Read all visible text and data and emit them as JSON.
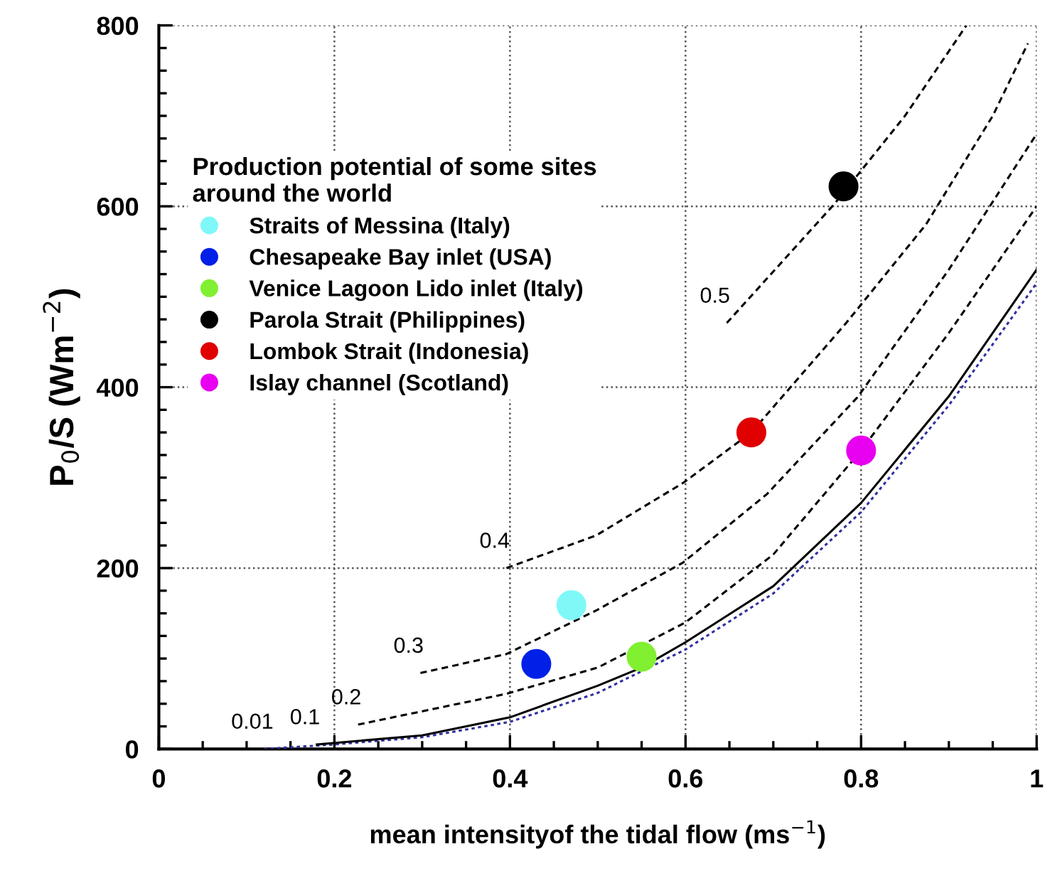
{
  "chart_data": {
    "type": "line",
    "xlabel": "mean intensityof the tidal flow (ms$^{−1}$)",
    "ylabel": "P$_{0}$/S (Wm$^{−2}$)",
    "legend_title": "Production potential of some sites\naround the world",
    "xlim": [
      0,
      1
    ],
    "ylim": [
      0,
      800
    ],
    "xticks": [
      0,
      0.2,
      0.4,
      0.6,
      0.8,
      1
    ],
    "yticks": [
      0,
      200,
      400,
      600,
      800
    ],
    "grid": true,
    "legend": "top left",
    "series": [
      {
        "name": "0.01",
        "line_style": "dotted",
        "color": "#3030a0",
        "x": [
          0.12,
          0.2,
          0.3,
          0.4,
          0.5,
          0.6,
          0.7,
          0.8,
          0.9,
          1.0
        ],
        "values": [
          0,
          5,
          13,
          30,
          62,
          110,
          172,
          262,
          380,
          515
        ]
      },
      {
        "name": "0.1",
        "line_style": "solid",
        "color": "#000000",
        "x": [
          0.18,
          0.3,
          0.4,
          0.5,
          0.55,
          0.6,
          0.7,
          0.8,
          0.9,
          1.0
        ],
        "values": [
          5,
          15,
          35,
          70,
          90,
          118,
          180,
          272,
          390,
          530
        ]
      },
      {
        "name": "0.2",
        "line_style": "dashed",
        "color": "#000000",
        "x": [
          0.227,
          0.396,
          0.5,
          0.6,
          0.7,
          0.8,
          0.9,
          1.0
        ],
        "values": [
          27,
          61,
          90,
          140,
          215,
          330,
          460,
          600
        ]
      },
      {
        "name": "0.3",
        "line_style": "dashed",
        "color": "#000000",
        "x": [
          0.298,
          0.396,
          0.498,
          0.597,
          0.693,
          0.796,
          0.9,
          1.0
        ],
        "values": [
          84,
          105,
          153,
          206,
          282,
          389,
          530,
          680
        ]
      },
      {
        "name": "0.4",
        "line_style": "dashed",
        "color": "#000000",
        "x": [
          0.396,
          0.498,
          0.597,
          0.675,
          0.783,
          0.874,
          0.95,
          0.99
        ],
        "values": [
          200,
          236,
          294,
          350,
          471,
          580,
          700,
          780
        ]
      },
      {
        "name": "0.5",
        "line_style": "dashed",
        "color": "#000000",
        "x": [
          0.647,
          0.77,
          0.85,
          0.92
        ],
        "values": [
          471,
          603,
          700,
          800
        ]
      },
      {
        "type": "scatter",
        "marker": "circle",
        "name": "Straits of Messina (Italy)",
        "color": "#80f8f8",
        "x": [
          0.47
        ],
        "values": [
          159
        ]
      },
      {
        "type": "scatter",
        "marker": "circle",
        "name": "Chesapeake Bay inlet (USA)",
        "color": "#0020e8",
        "x": [
          0.43
        ],
        "values": [
          94
        ]
      },
      {
        "type": "scatter",
        "marker": "circle",
        "name": "Venice Lagoon Lido inlet (Italy)",
        "color": "#80f030",
        "x": [
          0.55
        ],
        "values": [
          102
        ]
      },
      {
        "type": "scatter",
        "marker": "circle",
        "name": "Parola Strait (Philippines)",
        "color": "#000000",
        "x": [
          0.78
        ],
        "values": [
          622
        ]
      },
      {
        "type": "scatter",
        "marker": "circle",
        "name": "Lombok Strait (Indonesia)",
        "color": "#e00000",
        "x": [
          0.675
        ],
        "values": [
          350
        ]
      },
      {
        "type": "scatter",
        "marker": "circle",
        "name": "Islay channel (Scotland)",
        "color": "#e800f0",
        "x": [
          0.8
        ],
        "values": [
          330
        ]
      }
    ]
  }
}
